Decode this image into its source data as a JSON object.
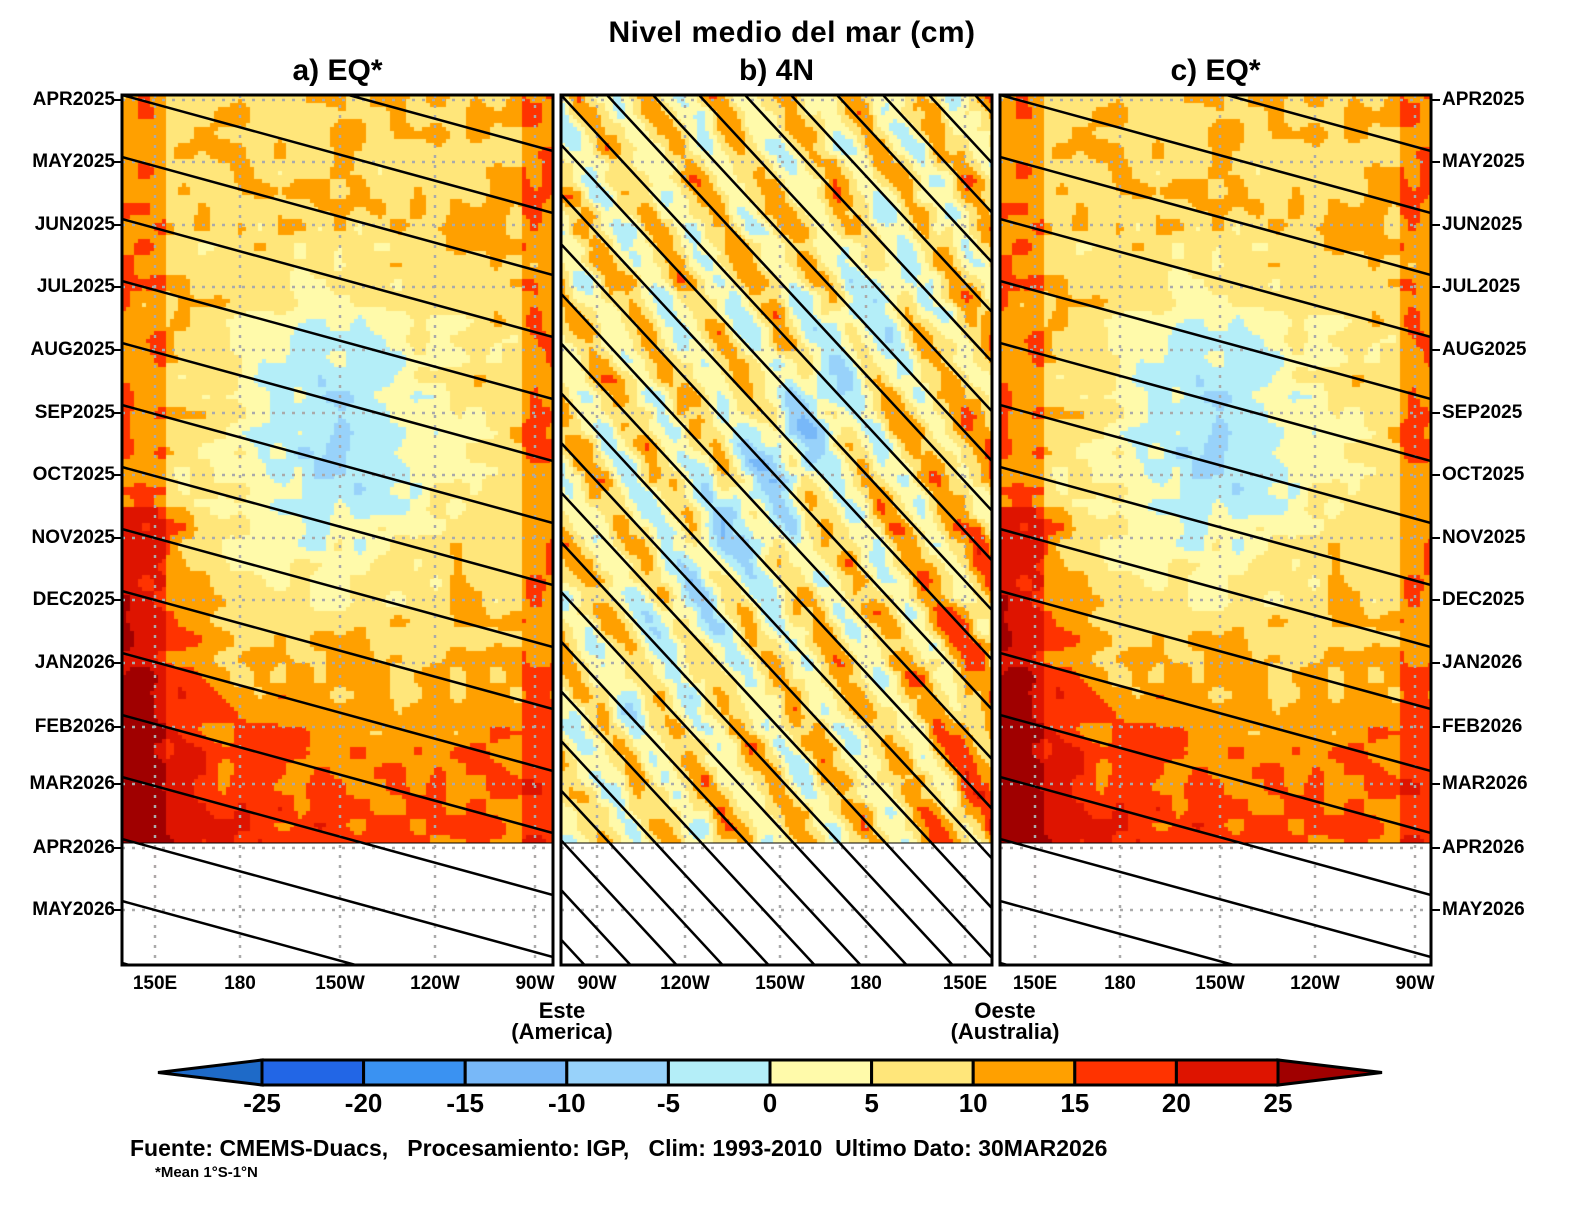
{
  "chart_data": {
    "type": "heatmap",
    "title": "Nivel medio del mar (cm)",
    "panels": [
      {
        "title": "a) EQ*",
        "x_ticks": [
          "150E",
          "180",
          "150W",
          "120W",
          "90W"
        ]
      },
      {
        "title": "b) 4N",
        "x_ticks": [
          "90W",
          "120W",
          "150W",
          "180",
          "150E"
        ]
      },
      {
        "title": "c) EQ*",
        "x_ticks": [
          "150E",
          "180",
          "150W",
          "120W",
          "90W"
        ]
      }
    ],
    "y_ticks": [
      "APR2025",
      "MAY2025",
      "JUN2025",
      "JUL2025",
      "AUG2025",
      "SEP2025",
      "OCT2025",
      "NOV2025",
      "DEC2025",
      "JAN2026",
      "FEB2026",
      "MAR2026",
      "APR2026",
      "MAY2026"
    ],
    "x_side_labels": {
      "east": "Este",
      "east_sub": "(America)",
      "west": "Oeste",
      "west_sub": "(Australia)"
    },
    "colorbar": {
      "levels": [
        "-25",
        "-20",
        "-15",
        "-10",
        "-5",
        "0",
        "5",
        "10",
        "15",
        "20",
        "25"
      ],
      "colors": [
        "#1e6ac8",
        "#2266e6",
        "#3a92f2",
        "#78b8f8",
        "#98d2fa",
        "#b4eef8",
        "#fffaaa",
        "#ffe67a",
        "#ffa000",
        "#ff3300",
        "#de1400",
        "#a00000"
      ]
    },
    "last_data": "30MAR2026"
  },
  "footer": {
    "source": "Fuente: CMEMS-Duacs,   Procesamiento: IGP,   Clim: 1993-2010  Ultimo Dato: 30MAR2026",
    "note": "*Mean 1°S-1°N"
  }
}
